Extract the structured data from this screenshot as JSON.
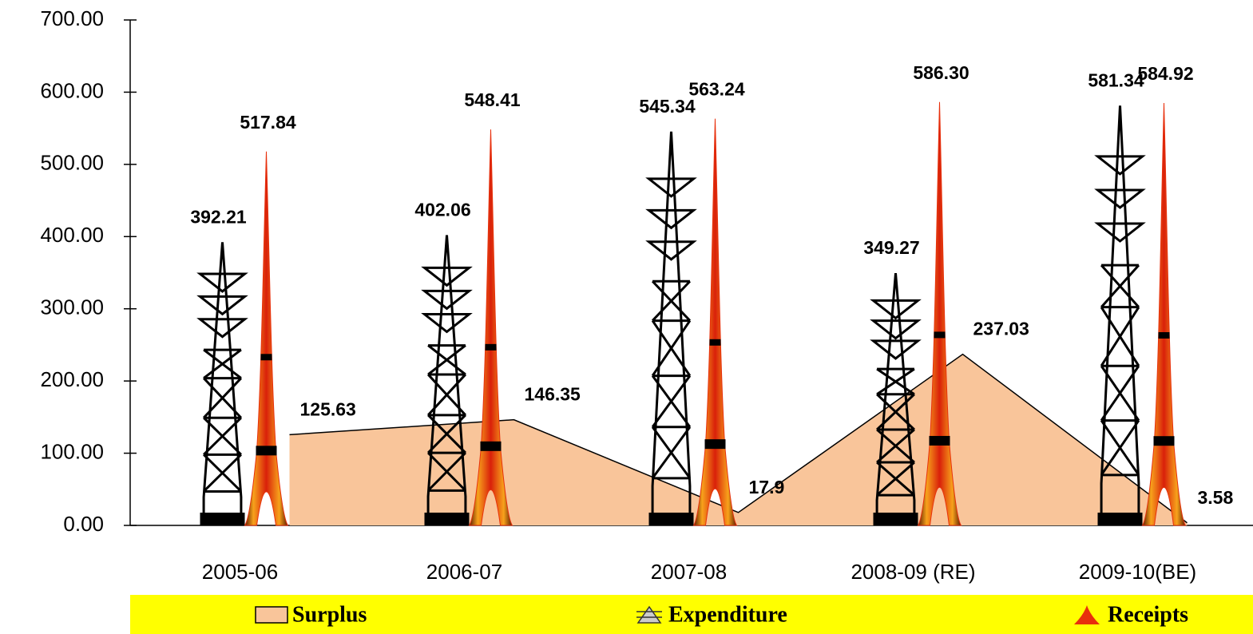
{
  "chart_data": {
    "type": "tower",
    "categories": [
      "2005-06",
      "2006-07",
      "2007-08",
      "2008-09 (RE)",
      "2009-10(BE)"
    ],
    "series": [
      {
        "name": "Surplus",
        "color": "#f9c59a",
        "values": [
          125.63,
          146.35,
          17.9,
          237.03,
          3.58
        ]
      },
      {
        "name": "Expenditure",
        "color": "#000000",
        "values": [
          392.21,
          402.06,
          545.34,
          349.27,
          581.34
        ]
      },
      {
        "name": "Receipts",
        "color": "#e8300c",
        "values": [
          517.84,
          548.41,
          563.24,
          586.3,
          584.92
        ],
        "value_labels": [
          "517.84",
          "548.41",
          "563.24",
          "586.30",
          "584.92"
        ]
      }
    ],
    "ylim": [
      0,
      700
    ],
    "yticks": [
      {
        "value": 0,
        "label": "0.00"
      },
      {
        "value": 100,
        "label": "100.00"
      },
      {
        "value": 200,
        "label": "200.00"
      },
      {
        "value": 300,
        "label": "300.00"
      },
      {
        "value": 400,
        "label": "400.00"
      },
      {
        "value": 500,
        "label": "500.00"
      },
      {
        "value": 600,
        "label": "600.00"
      },
      {
        "value": 700,
        "label": "700.00"
      }
    ],
    "legend": "bottom"
  }
}
